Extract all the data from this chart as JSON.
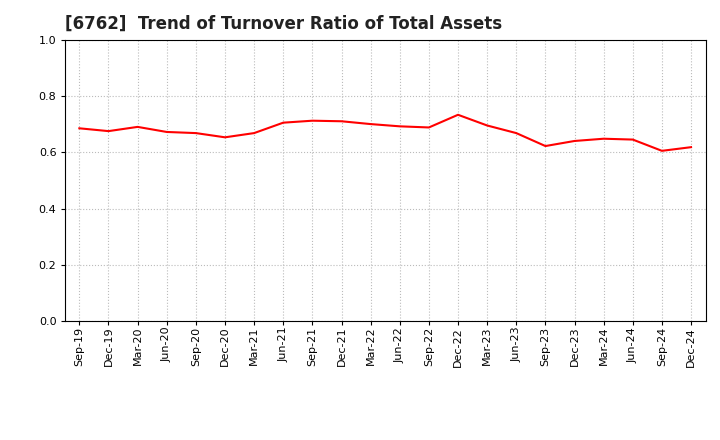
{
  "title": "[6762]  Trend of Turnover Ratio of Total Assets",
  "labels": [
    "Sep-19",
    "Dec-19",
    "Mar-20",
    "Jun-20",
    "Sep-20",
    "Dec-20",
    "Mar-21",
    "Jun-21",
    "Sep-21",
    "Dec-21",
    "Mar-22",
    "Jun-22",
    "Sep-22",
    "Dec-22",
    "Mar-23",
    "Jun-23",
    "Sep-23",
    "Dec-23",
    "Mar-24",
    "Jun-24",
    "Sep-24",
    "Dec-24"
  ],
  "values": [
    0.685,
    0.675,
    0.69,
    0.672,
    0.668,
    0.653,
    0.668,
    0.705,
    0.712,
    0.71,
    0.7,
    0.692,
    0.688,
    0.733,
    0.695,
    0.668,
    0.622,
    0.64,
    0.648,
    0.645,
    0.605,
    0.618
  ],
  "line_color": "#ff0000",
  "line_width": 1.5,
  "ylim": [
    0.0,
    1.0
  ],
  "yticks": [
    0.0,
    0.2,
    0.4,
    0.6,
    0.8,
    1.0
  ],
  "grid_color": "#bbbbbb",
  "background_color": "#ffffff",
  "title_fontsize": 12,
  "tick_fontsize": 8,
  "title_color": "#222222"
}
